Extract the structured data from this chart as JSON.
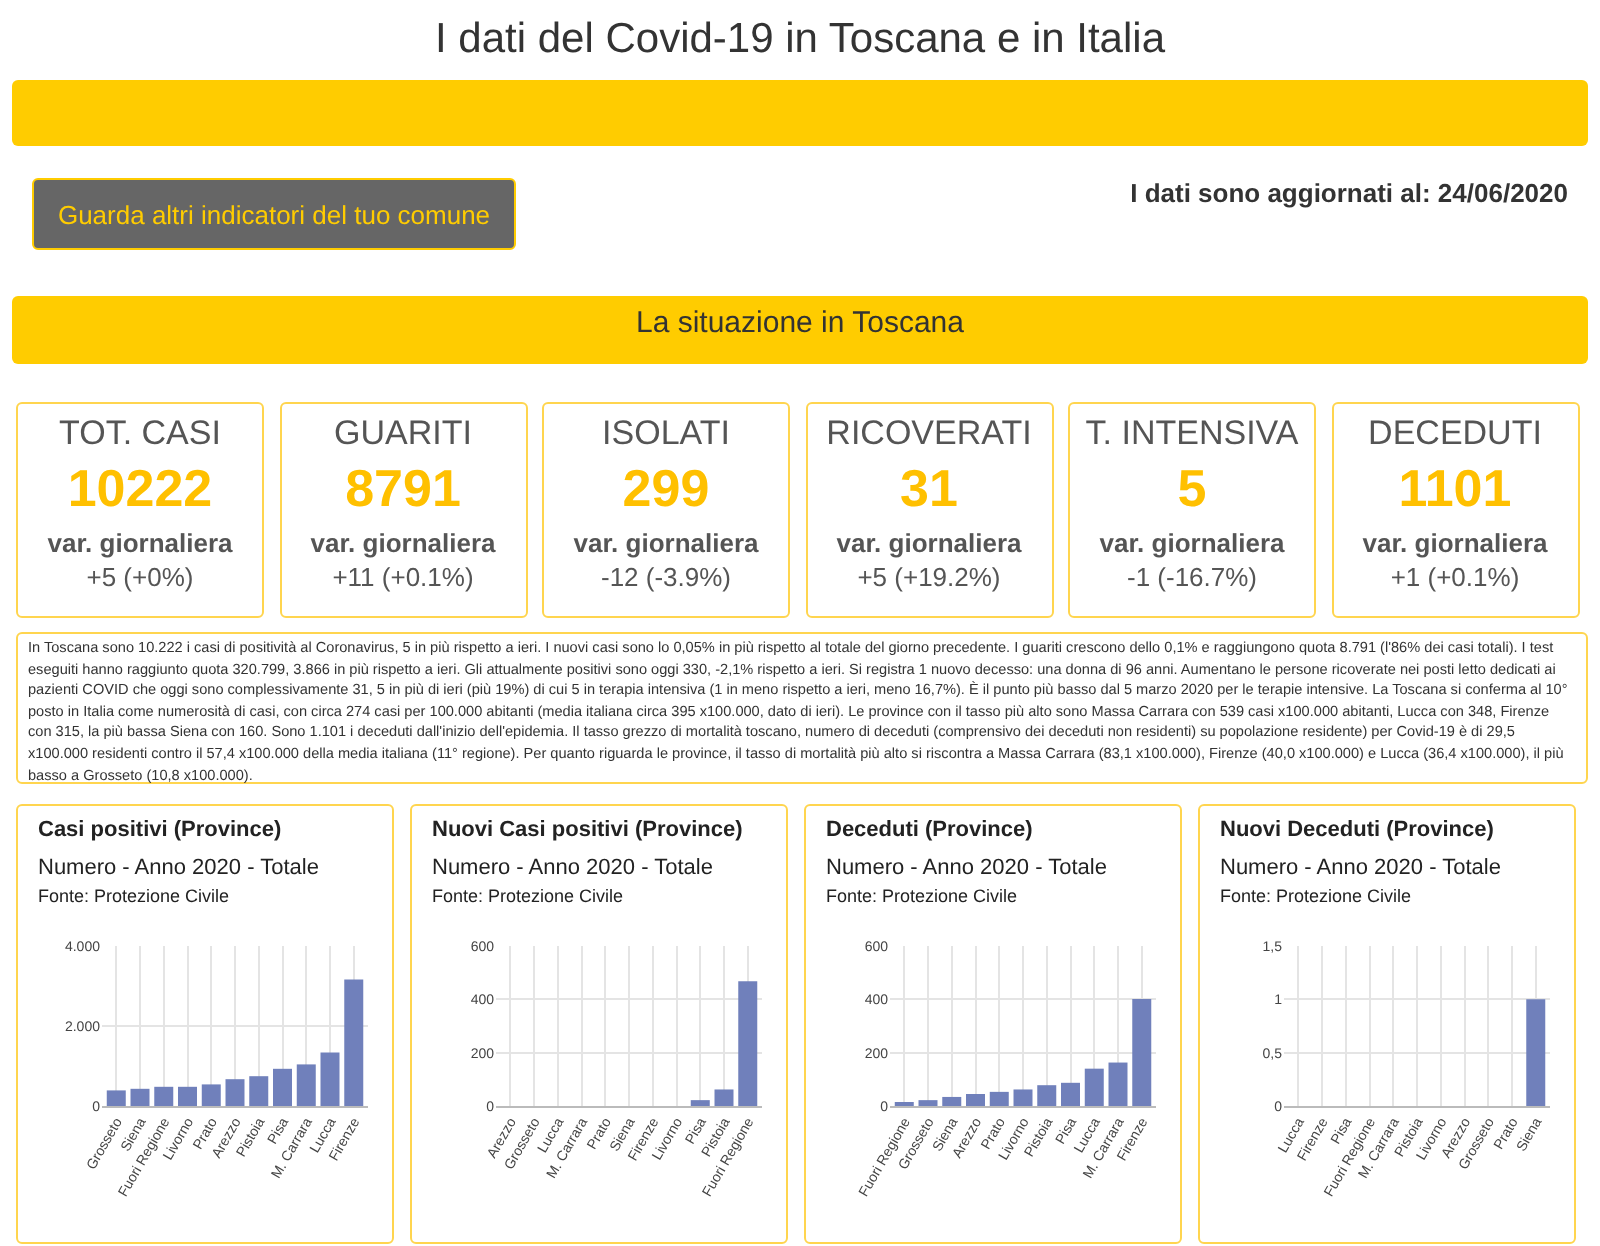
{
  "chart_data": [
    {
      "type": "other",
      "title": "I dati del Covid-19 in Toscana e in Italia",
      "annotations": [
        "Guarda altri indicatori del tuo comune",
        "I dati sono aggiornati al: 24/06/2020",
        "La situazione in Toscana",
        "TOT. CASI",
        "10222",
        "var. giornaliera",
        "+5 (+0%)",
        "GUARITI",
        "8791",
        "var. giornaliera",
        "+11 (+0.1%)",
        "ISOLATI",
        "299",
        "var. giornaliera",
        "-12 (-3.9%)",
        "RICOVERATI",
        "31",
        "var. giornaliera",
        "+5 (+19.2%)",
        "T. INTENSIVA",
        "5",
        "var. giornaliera",
        "-1 (-16.7%)",
        "DECEDUTI",
        "1101",
        "var. giornaliera",
        "+1 (+0.1%)",
        "In Toscana sono 10.222 i casi di positività al Coronavirus, 5 in più rispetto a ieri. I nuovi casi sono lo 0,05% in più rispetto al totale del giorno precedente. I guariti crescono dello 0,1% e raggiungono quota 8.791 (l'86% dei casi totali). I test eseguiti hanno raggiunto quota 320.799, 3.866 in più rispetto a ieri. Gli attualmente positivi sono oggi 330, -2,1% rispetto a ieri. Si registra 1 nuovo decesso: una donna di 96 anni. Aumentano le persone ricoverate nei posti letto dedicati ai pazienti COVID che oggi sono complessivamente 31, 5 in più di ieri (più 19%) di cui 5 in terapia intensiva (1 in meno rispetto a ieri, meno 16,7%). È il punto più basso dal 5 marzo 2020 per le terapie intensive. La Toscana si conferma al 10° posto in Italia come numerosità di casi, con circa 274 casi per 100.000 abitanti (media italiana circa 395 x100.000, dato di ieri). Le province con il tasso più alto sono Massa Carrara con 539 casi x100.000 abitanti, Lucca con 348, Firenze con 315, la più bassa Siena con 160. Sono 1.101 i deceduti dall'inizio dell'epidemia. Il tasso grezzo di mortalità toscano, numero di deceduti (comprensivo dei deceduti non residenti) su popolazione residente) per Covid-19 è di 29,5 x100.000 residenti contro il 57,4 x100.000 della media italiana (11° regione). Per quanto riguarda le province, il tasso di mortalità più alto si riscontra a Massa Carrara (83,1 x100.000), Firenze (40,0 x100.000) e Lucca (36,4 x100.000), il più basso a Grosseto (10,8 x100.000)."
      ]
    },
    {
      "type": "bar",
      "title": "Casi positivi (Province)",
      "subtitle": "Numero - Anno 2020 - Totale",
      "annotations": [
        "Fonte: Protezione Civile"
      ],
      "categories": [
        "Grosseto",
        "Siena",
        "Fuori Regione",
        "Livorno",
        "Prato",
        "Arezzo",
        "Pistoia",
        "Pisa",
        "M. Carrara",
        "Lucca",
        "Firenze"
      ],
      "values": [
        390,
        430,
        480,
        480,
        540,
        670,
        745,
        930,
        1040,
        1340,
        3160
      ],
      "color": "#7080bb",
      "ylim": [
        0,
        4000
      ],
      "yticks": [
        0,
        {
          "value": 2000,
          "label": "2.000"
        },
        {
          "value": 4000,
          "label": "4.000"
        }
      ],
      "grid": true
    },
    {
      "type": "bar",
      "title": "Nuovi Casi positivi (Province)",
      "subtitle": "Numero - Anno 2020 - Totale",
      "annotations": [
        "Fonte: Protezione Civile"
      ],
      "categories": [
        "Arezzo",
        "Grosseto",
        "Lucca",
        "M. Carrara",
        "Prato",
        "Siena",
        "Firenze",
        "Livorno",
        "Pisa",
        "Pistoia",
        "Fuori Regione"
      ],
      "values": [
        0,
        0,
        0,
        0,
        0,
        0,
        0,
        0,
        22,
        62,
        468
      ],
      "color": "#7080bb",
      "ylim": [
        0,
        600
      ],
      "yticks": [
        0,
        200,
        400,
        600
      ],
      "grid": true
    },
    {
      "type": "bar",
      "title": "Deceduti (Province)",
      "subtitle": "Numero - Anno 2020 - Totale",
      "annotations": [
        "Fonte: Protezione Civile"
      ],
      "categories": [
        "Fuori Regione",
        "Grosseto",
        "Siena",
        "Arezzo",
        "Prato",
        "Livorno",
        "Pistoia",
        "Pisa",
        "Lucca",
        "M. Carrara",
        "Firenze"
      ],
      "values": [
        11,
        22,
        34,
        45,
        53,
        62,
        78,
        87,
        140,
        163,
        401
      ],
      "color": "#7080bb",
      "ylim": [
        0,
        600
      ],
      "yticks": [
        0,
        200,
        400,
        600
      ],
      "grid": true
    },
    {
      "type": "bar",
      "title": "Nuovi Deceduti (Province)",
      "subtitle": "Numero - Anno 2020 - Totale",
      "annotations": [
        "Fonte: Protezione Civile"
      ],
      "categories": [
        "Lucca",
        "Firenze",
        "Pisa",
        "Fuori Regione",
        "M. Carrara",
        "Pistoia",
        "Livorno",
        "Arezzo",
        "Grosseto",
        "Prato",
        "Siena"
      ],
      "values": [
        0,
        0,
        0,
        0,
        0,
        0,
        0,
        0,
        0,
        0,
        1
      ],
      "color": "#7080bb",
      "ylim": [
        0,
        1.5
      ],
      "yticks": [
        0,
        {
          "value": 0.5,
          "label": "0,5"
        },
        1,
        {
          "value": 1.5,
          "label": "1,5"
        }
      ],
      "grid": true
    }
  ]
}
